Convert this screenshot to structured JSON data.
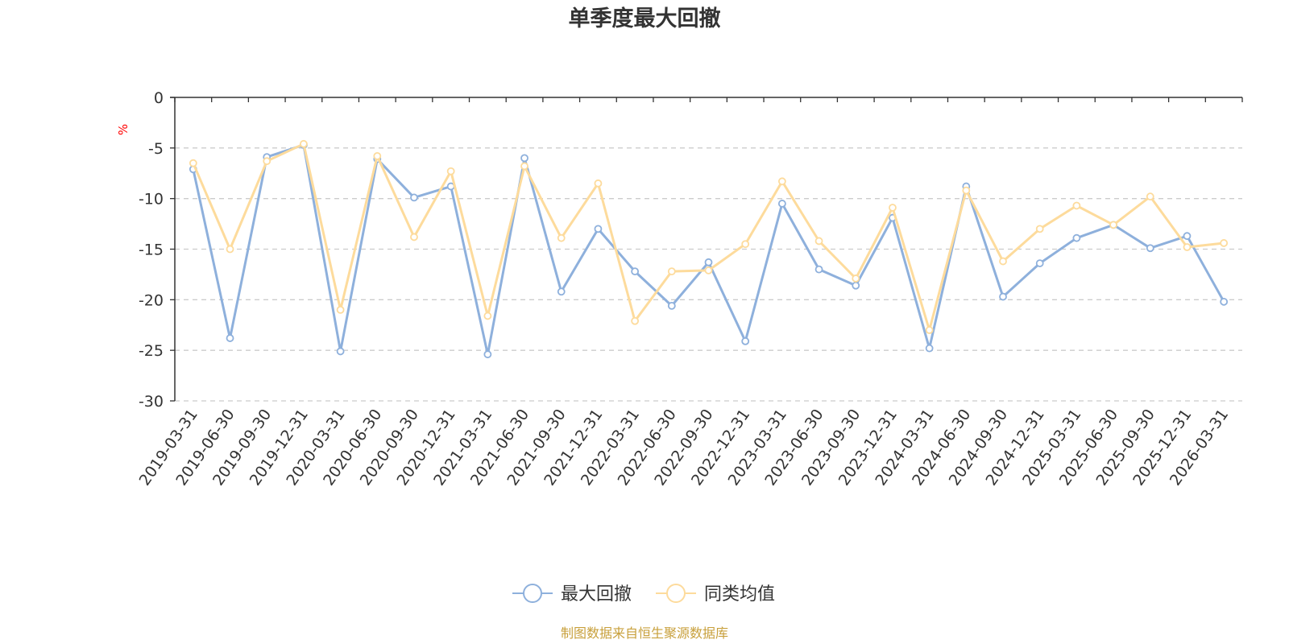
{
  "chart_data": {
    "type": "line",
    "title": "单季度最大回撤",
    "ylabel": "%",
    "xlabel": "",
    "ylim": [
      -30,
      0
    ],
    "yticks": [
      "0",
      "-5",
      "-10",
      "-15",
      "-20",
      "-25",
      "-30"
    ],
    "ytick_values": [
      0,
      -5,
      -10,
      -15,
      -20,
      -25,
      -30
    ],
    "grid": true,
    "legend_position": "bottom-center",
    "categories": [
      "2019-03-31",
      "2019-06-30",
      "2019-09-30",
      "2019-12-31",
      "2020-03-31",
      "2020-06-30",
      "2020-09-30",
      "2020-12-31",
      "2021-03-31",
      "2021-06-30",
      "2021-09-30",
      "2021-12-31",
      "2022-03-31",
      "2022-06-30",
      "2022-09-30",
      "2022-12-31",
      "2023-03-31",
      "2023-06-30",
      "2023-09-30",
      "2023-12-31",
      "2024-03-31",
      "2024-06-30",
      "2024-09-30",
      "2024-12-31",
      "2025-03-31",
      "2025-06-30",
      "2025-09-30",
      "2025-12-31",
      "2026-03-31"
    ],
    "series": [
      {
        "name": "最大回撤",
        "color": "#8eb0dc",
        "values": [
          -7.1,
          -23.8,
          -5.9,
          -4.7,
          -25.1,
          -6.1,
          -9.9,
          -8.8,
          -25.4,
          -6.0,
          -19.2,
          -13.0,
          -17.2,
          -20.6,
          -16.3,
          -24.1,
          -10.5,
          -17.0,
          -18.6,
          -11.9,
          -24.8,
          -8.8,
          -19.7,
          -16.4,
          -13.9,
          -12.6,
          -14.9,
          -13.7,
          -20.2
        ]
      },
      {
        "name": "同类均值",
        "color": "#fddb9c",
        "values": [
          -6.5,
          -15.0,
          -6.3,
          -4.6,
          -21.0,
          -5.8,
          -13.8,
          -7.3,
          -21.6,
          -6.8,
          -13.9,
          -8.5,
          -22.1,
          -17.2,
          -17.1,
          -14.5,
          -8.3,
          -14.2,
          -17.9,
          -10.9,
          -23.0,
          -9.2,
          -16.2,
          -13.0,
          -10.7,
          -12.6,
          -9.8,
          -14.8,
          -14.4
        ]
      }
    ]
  },
  "source_text": "制图数据来自恒生聚源数据库",
  "colors": {
    "axis": "#333333",
    "grid": "#cccccc",
    "unit": "#ff0000",
    "source": "#c8a03c"
  }
}
